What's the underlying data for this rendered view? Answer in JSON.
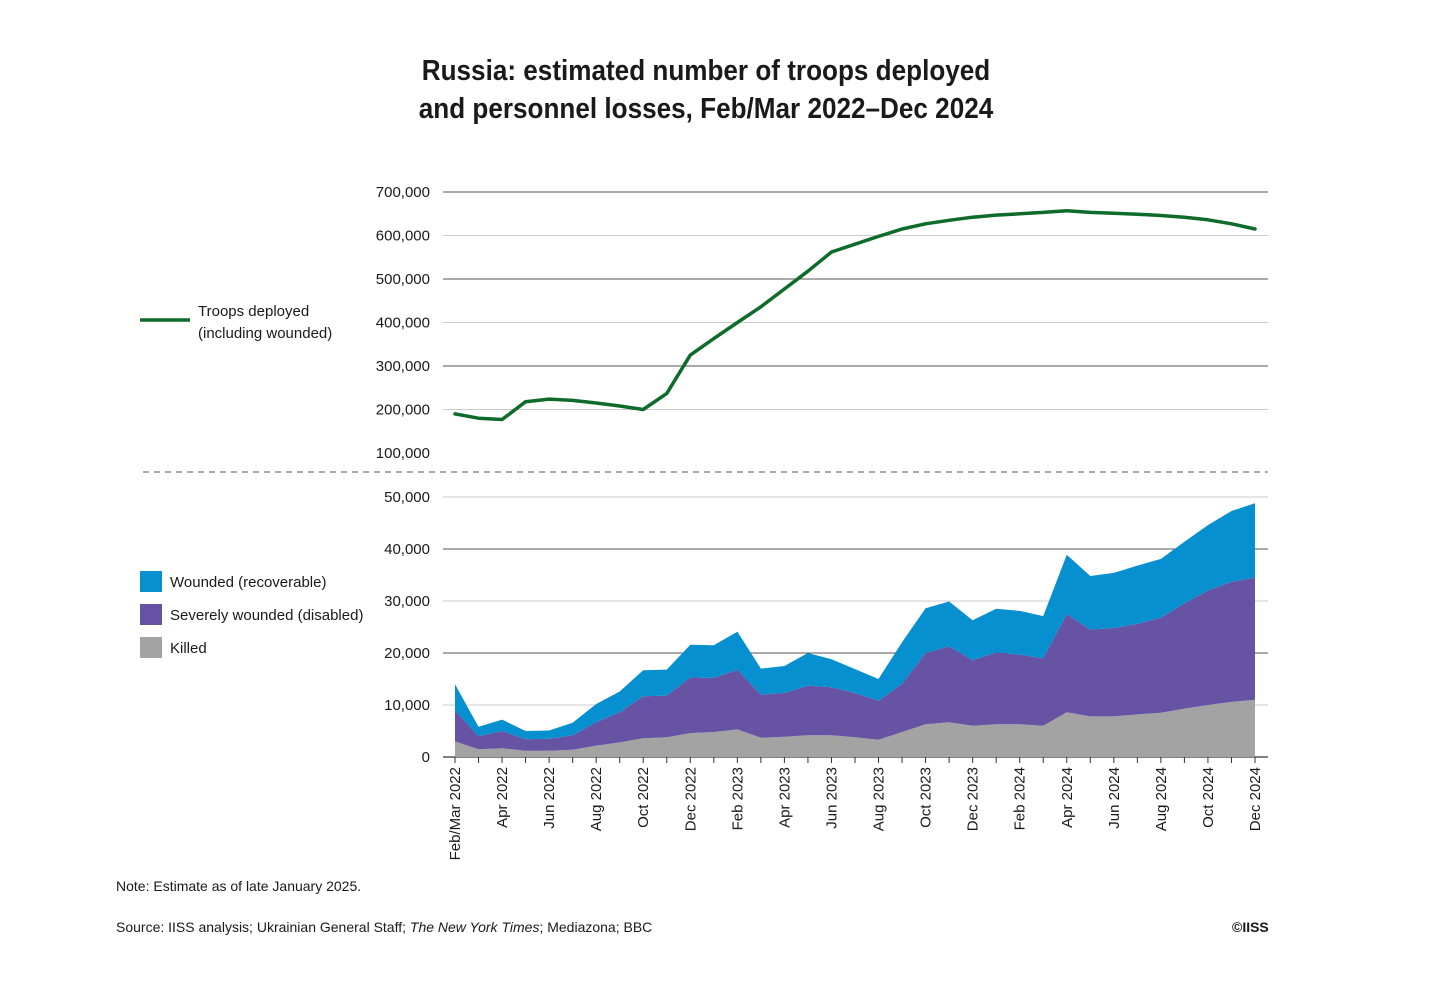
{
  "title": {
    "line1": "Russia: estimated number of troops deployed",
    "line2": "and personnel losses, Feb/Mar 2022–Dec 2024"
  },
  "note": "Note: Estimate as of late January 2025.",
  "source": {
    "prefix": "Source: IISS analysis; Ukrainian General Staff; ",
    "italic": "The New York Times",
    "suffix": "; Mediazona; BBC"
  },
  "copyright": "©IISS",
  "colors": {
    "troops": "#0f6b2a",
    "wounded": "#0790d0",
    "severely_wounded": "#6653a3",
    "killed": "#a3a3a3",
    "grid": "#cccccc",
    "grid_strong": "#555555"
  },
  "chart_data": [
    {
      "type": "line",
      "legend": "left",
      "grid": true,
      "ylim": [
        100000,
        700000
      ],
      "yticks": [
        100000,
        200000,
        300000,
        400000,
        500000,
        600000,
        700000
      ],
      "ytick_labels": [
        "100,000",
        "200,000",
        "300,000",
        "400,000",
        "500,000",
        "600,000",
        "700,000"
      ],
      "series": [
        {
          "name": "Troops deployed (including wounded)",
          "legend_lines": [
            "Troops deployed",
            "(including wounded)"
          ],
          "values": [
            190000,
            180000,
            177000,
            218000,
            224000,
            221000,
            215000,
            208000,
            200000,
            237000,
            325000,
            363000,
            400000,
            436000,
            477000,
            518000,
            562000,
            580000,
            598000,
            615000,
            627000,
            635000,
            642000,
            647000,
            650000,
            653000,
            657000,
            653000,
            651000,
            649000,
            646000,
            642000,
            636000,
            627000,
            615000
          ]
        }
      ]
    },
    {
      "type": "area",
      "stacked": true,
      "legend": "left",
      "grid": true,
      "ylim": [
        0,
        50000
      ],
      "yticks": [
        0,
        10000,
        20000,
        30000,
        40000,
        50000
      ],
      "ytick_labels": [
        "0",
        "10,000",
        "20,000",
        "30,000",
        "40,000",
        "50,000"
      ],
      "x": [
        "Feb/Mar 2022",
        "Mar 2022",
        "Apr 2022",
        "May 2022",
        "Jun 2022",
        "Jul 2022",
        "Aug 2022",
        "Sep 2022",
        "Oct 2022",
        "Nov 2022",
        "Dec 2022",
        "Jan 2023",
        "Feb 2023",
        "Mar 2023",
        "Apr 2023",
        "May 2023",
        "Jun 2023",
        "Jul 2023",
        "Aug 2023",
        "Sep 2023",
        "Oct 2023",
        "Nov 2023",
        "Dec 2023",
        "Jan 2024",
        "Feb 2024",
        "Mar 2024",
        "Apr 2024",
        "May 2024",
        "Jun 2024",
        "Jul 2024",
        "Aug 2024",
        "Sep 2024",
        "Oct 2024",
        "Nov 2024",
        "Dec 2024"
      ],
      "x_tick_labels": [
        "Feb/Mar 2022",
        "",
        "Apr 2022",
        "",
        "Jun 2022",
        "",
        "Aug 2022",
        "",
        "Oct 2022",
        "",
        "Dec 2022",
        "",
        "Feb 2023",
        "",
        "Apr 2023",
        "",
        "Jun 2023",
        "",
        "Aug 2023",
        "",
        "Oct 2023",
        "",
        "Dec 2023",
        "",
        "Feb 2024",
        "",
        "Apr 2024",
        "",
        "Jun 2024",
        "",
        "Aug 2024",
        "",
        "Oct 2024",
        "",
        "Dec 2024"
      ],
      "series": [
        {
          "name": "Killed",
          "values": [
            3000,
            1500,
            1700,
            1200,
            1200,
            1400,
            2200,
            2800,
            3600,
            3800,
            4600,
            4800,
            5300,
            3700,
            3900,
            4200,
            4200,
            3800,
            3300,
            4800,
            6300,
            6700,
            6000,
            6300,
            6300,
            6000,
            8600,
            7800,
            7800,
            8200,
            8500,
            9300,
            10000,
            10600,
            11000
          ]
        },
        {
          "name": "Severely wounded (disabled)",
          "values": [
            6000,
            2500,
            3300,
            2200,
            2300,
            2800,
            4500,
            5800,
            8100,
            8000,
            10700,
            10400,
            11500,
            8300,
            8400,
            9500,
            9200,
            8500,
            7500,
            9300,
            13700,
            14600,
            12600,
            13800,
            13400,
            13000,
            18900,
            16700,
            17000,
            17400,
            18300,
            20300,
            22000,
            23100,
            23500
          ]
        },
        {
          "name": "Wounded (recoverable)",
          "values": [
            5000,
            1800,
            2200,
            1600,
            1600,
            2400,
            3500,
            4000,
            5000,
            5000,
            6300,
            6300,
            7300,
            5000,
            5200,
            6300,
            5400,
            4600,
            4200,
            8000,
            8600,
            8600,
            7700,
            8400,
            8400,
            8100,
            11400,
            10300,
            10600,
            11200,
            11300,
            11800,
            12600,
            13600,
            14300
          ]
        }
      ]
    }
  ]
}
